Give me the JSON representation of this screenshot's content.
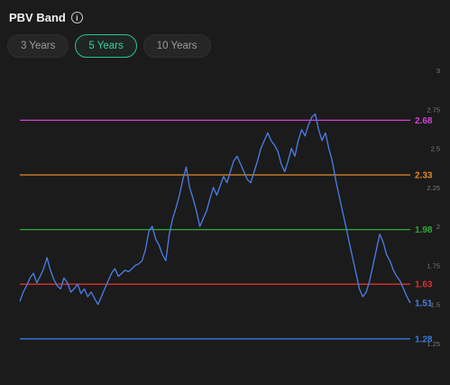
{
  "header": {
    "title": "PBV Band",
    "info_icon": "info-circle-icon"
  },
  "tabs": [
    {
      "label": "3 Years",
      "active": false
    },
    {
      "label": "5 Years",
      "active": true
    },
    {
      "label": "10 Years",
      "active": false
    }
  ],
  "chart_data": {
    "type": "line",
    "title": "",
    "xlabel": "",
    "ylabel": "",
    "ylim": [
      1.25,
      3.0
    ],
    "yticks": [
      "3",
      "2.75",
      "2.5",
      "2.25",
      "2",
      "1.75",
      "1.5",
      "1.25"
    ],
    "bands": [
      {
        "label": "2.68",
        "value": 2.68,
        "color": "#d43fd4"
      },
      {
        "label": "2.33",
        "value": 2.33,
        "color": "#e0892a"
      },
      {
        "label": "1.98",
        "value": 1.98,
        "color": "#2fa83a"
      },
      {
        "label": "1.63",
        "value": 1.63,
        "color": "#e03030"
      },
      {
        "label": "1.28",
        "value": 1.28,
        "color": "#3a7be0"
      }
    ],
    "series": [
      {
        "color": "#4a7fe8",
        "current_label": "1.51",
        "values": [
          1.52,
          1.58,
          1.62,
          1.67,
          1.7,
          1.64,
          1.68,
          1.73,
          1.8,
          1.72,
          1.66,
          1.62,
          1.6,
          1.67,
          1.64,
          1.58,
          1.6,
          1.63,
          1.57,
          1.6,
          1.55,
          1.58,
          1.54,
          1.5,
          1.55,
          1.6,
          1.65,
          1.7,
          1.73,
          1.68,
          1.7,
          1.72,
          1.71,
          1.73,
          1.75,
          1.76,
          1.78,
          1.85,
          1.97,
          2.0,
          1.92,
          1.88,
          1.82,
          1.78,
          1.95,
          2.05,
          2.12,
          2.2,
          2.3,
          2.38,
          2.25,
          2.18,
          2.1,
          2.0,
          2.05,
          2.1,
          2.18,
          2.25,
          2.2,
          2.26,
          2.32,
          2.28,
          2.35,
          2.42,
          2.45,
          2.4,
          2.35,
          2.3,
          2.28,
          2.35,
          2.42,
          2.5,
          2.55,
          2.6,
          2.55,
          2.52,
          2.48,
          2.4,
          2.35,
          2.42,
          2.5,
          2.45,
          2.55,
          2.62,
          2.58,
          2.65,
          2.7,
          2.72,
          2.62,
          2.55,
          2.6,
          2.5,
          2.42,
          2.3,
          2.2,
          2.1,
          2.0,
          1.9,
          1.8,
          1.7,
          1.6,
          1.55,
          1.58,
          1.65,
          1.75,
          1.85,
          1.95,
          1.9,
          1.82,
          1.78,
          1.72,
          1.68,
          1.65,
          1.6,
          1.55,
          1.51
        ]
      }
    ],
    "grid": false,
    "legend": "none"
  }
}
